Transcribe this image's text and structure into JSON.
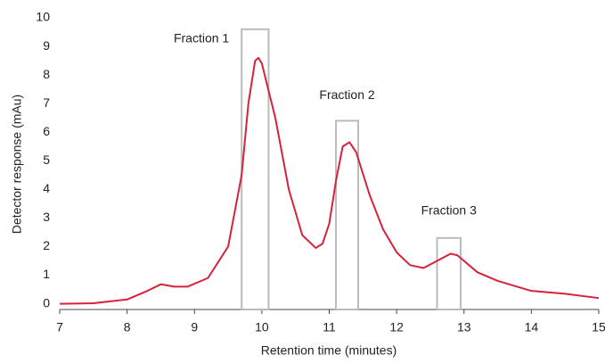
{
  "chart_data": {
    "type": "line",
    "x_label": "Retention time (minutes)",
    "y_label": "Detector response (mAu)",
    "xlim": [
      7,
      15
    ],
    "xticks": [
      7,
      8,
      9,
      10,
      11,
      12,
      13,
      14,
      15
    ],
    "ylim": [
      -0.2,
      10
    ],
    "yticks": [
      0,
      1,
      2,
      3,
      4,
      5,
      6,
      7,
      8,
      9,
      10
    ],
    "series": [
      {
        "color": "#d6223b",
        "x": [
          7.0,
          7.5,
          8.0,
          8.3,
          8.5,
          8.7,
          8.9,
          9.2,
          9.5,
          9.7,
          9.8,
          9.9,
          9.95,
          10.0,
          10.2,
          10.4,
          10.6,
          10.8,
          10.9,
          11.0,
          11.1,
          11.2,
          11.3,
          11.4,
          11.6,
          11.8,
          12.0,
          12.2,
          12.4,
          12.6,
          12.8,
          12.9,
          13.0,
          13.2,
          13.5,
          14.0,
          14.5,
          15.0
        ],
        "values": [
          0.0,
          0.02,
          0.15,
          0.45,
          0.68,
          0.6,
          0.6,
          0.9,
          2.0,
          4.5,
          7.0,
          8.5,
          8.6,
          8.4,
          6.5,
          4.0,
          2.4,
          1.95,
          2.1,
          2.8,
          4.3,
          5.5,
          5.65,
          5.3,
          3.8,
          2.6,
          1.8,
          1.35,
          1.25,
          1.5,
          1.75,
          1.7,
          1.5,
          1.1,
          0.8,
          0.45,
          0.35,
          0.2
        ]
      }
    ],
    "fractions": [
      {
        "label": "Fraction 1",
        "x": [
          9.7,
          10.1
        ],
        "height": 9.6
      },
      {
        "label": "Fraction 2",
        "x": [
          11.1,
          11.43
        ],
        "height": 6.4
      },
      {
        "label": "Fraction 3",
        "x": [
          12.6,
          12.95
        ],
        "height": 2.3
      }
    ],
    "box_color": "#bbbbbb"
  }
}
